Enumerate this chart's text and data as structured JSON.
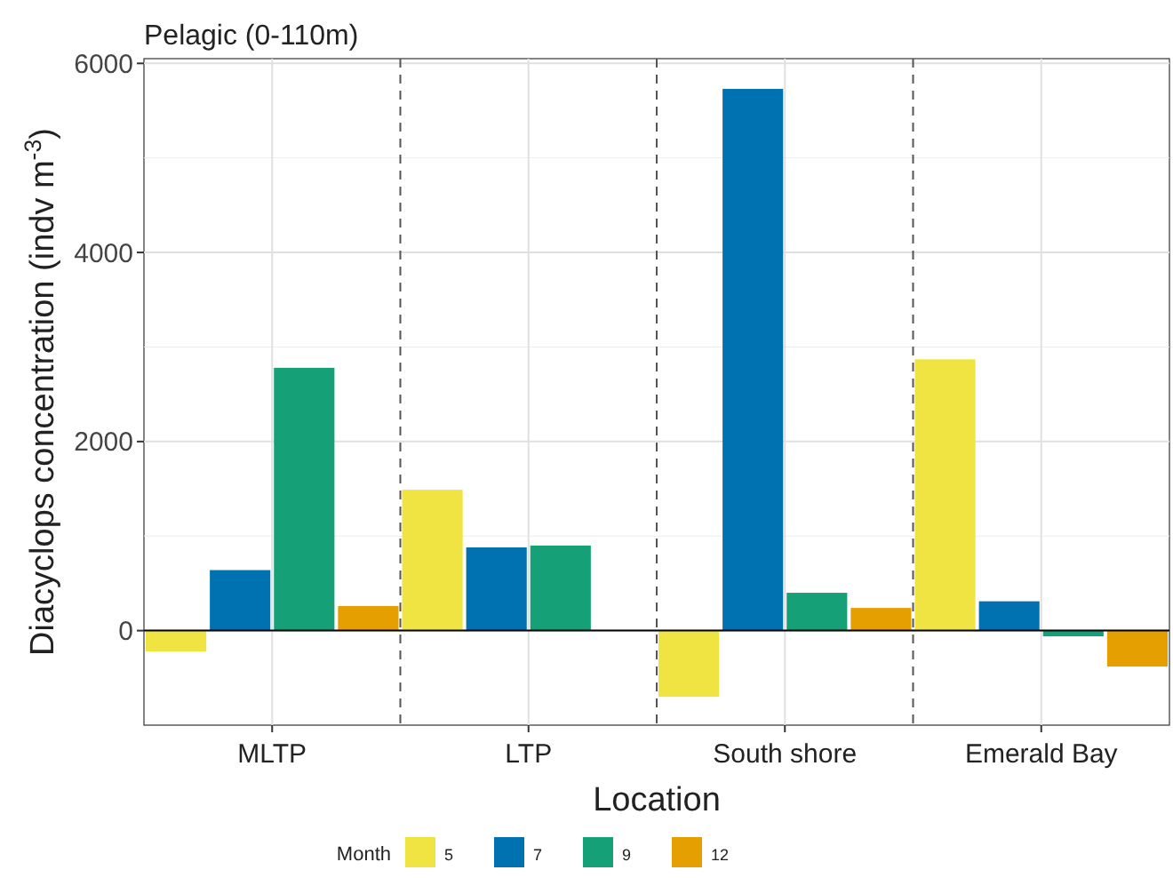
{
  "chart_data": {
    "type": "bar",
    "title": "Pelagic (0-110m)",
    "xlabel": "Location",
    "ylabel": "Diacyclops concentration (indv m$^{-3}$)",
    "legend_title": "Month",
    "categories": [
      "MLTP",
      "LTP",
      "South shore",
      "Emerald Bay"
    ],
    "series": [
      {
        "name": "5",
        "color": "#f0e442",
        "values": [
          -220,
          1490,
          -700,
          2870
        ]
      },
      {
        "name": "7",
        "color": "#0072b2",
        "values": [
          640,
          880,
          5730,
          310
        ]
      },
      {
        "name": "9",
        "color": "#16a077",
        "values": [
          2780,
          900,
          400,
          -60
        ]
      },
      {
        "name": "12",
        "color": "#e69f00",
        "values": [
          260,
          null,
          240,
          -380
        ]
      }
    ],
    "ylim": [
      -1000,
      6050
    ],
    "yticks": [
      0,
      2000,
      4000,
      6000
    ],
    "grid": true,
    "legend": "bottom",
    "ref_lines": [
      {
        "axis": "y",
        "value": 0,
        "color": "#000000",
        "line_style": "solid"
      }
    ]
  }
}
